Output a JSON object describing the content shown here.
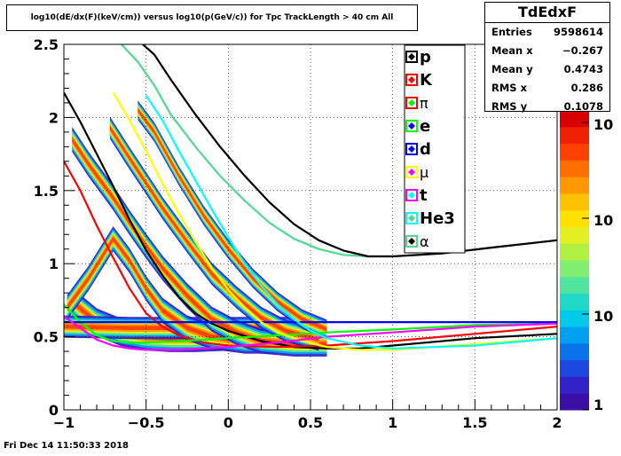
{
  "title": "log10(dE/dx(F)(keV/cm)) versus log10(p(GeV/c)) for Tpc TrackLength > 40 cm All",
  "stats": {
    "name": "TdEdxF",
    "rows": [
      {
        "label": "Entries",
        "value": "9598614"
      },
      {
        "label": "Mean x",
        "value": "−0.267"
      },
      {
        "label": "Mean y",
        "value": "0.4743"
      },
      {
        "label": "RMS x",
        "value": "0.286"
      },
      {
        "label": "RMS y",
        "value": "0.1078"
      }
    ]
  },
  "footer": "Fri Dec 14 11:50:33 2018",
  "palette": [
    "#3b0fa6",
    "#3322c8",
    "#1b47de",
    "#0a72e8",
    "#00a0f0",
    "#00c8e8",
    "#20d8c8",
    "#50e4a0",
    "#80ee70",
    "#b0f040",
    "#e0f020",
    "#ffe000",
    "#ffc000",
    "#ff9800",
    "#ff6e00",
    "#ff4000",
    "#f02000",
    "#d80000"
  ],
  "chart_data": {
    "type": "heatmap",
    "title": "log10(dE/dx(F)(keV/cm)) versus log10(p(GeV/c)) for Tpc TrackLength > 40 cm All",
    "xlim": [
      -1,
      2
    ],
    "ylim": [
      0,
      2.5
    ],
    "x_ticks": [
      "−1",
      "−0.5",
      "0",
      "0.5",
      "1",
      "1.5",
      "2"
    ],
    "y_ticks": [
      "0",
      "0.5",
      "1",
      "1.5",
      "2",
      "2.5"
    ],
    "grid": true,
    "z_scale": "log",
    "colorbar_labels": [
      "1",
      "10",
      "10",
      "10"
    ],
    "legend_position": "top-right",
    "bands": [
      {
        "name": "pi",
        "points": [
          [
            -0.95,
            0.74
          ],
          [
            -0.8,
            0.6
          ],
          [
            -0.65,
            0.53
          ],
          [
            -0.5,
            0.5
          ],
          [
            -0.35,
            0.49
          ],
          [
            -0.2,
            0.49
          ],
          [
            0,
            0.5
          ],
          [
            0.3,
            0.52
          ]
        ],
        "width": 0.05
      },
      {
        "name": "e",
        "points": [
          [
            -1,
            0.57
          ],
          [
            -0.6,
            0.56
          ],
          [
            -0.2,
            0.56
          ],
          [
            0.3,
            0.56
          ],
          [
            0.55,
            0.56
          ]
        ],
        "width": 0.04
      },
      {
        "name": "K",
        "points": [
          [
            -0.98,
            0.7
          ],
          [
            -0.85,
            0.9
          ],
          [
            -0.7,
            1.17
          ],
          [
            -0.6,
            1.02
          ],
          [
            -0.5,
            0.83
          ],
          [
            -0.4,
            0.68
          ],
          [
            -0.25,
            0.56
          ],
          [
            -0.1,
            0.5
          ],
          [
            0.1,
            0.47
          ],
          [
            0.3,
            0.47
          ]
        ],
        "width": 0.045
      },
      {
        "name": "p",
        "points": [
          [
            -0.95,
            1.85
          ],
          [
            -0.85,
            1.68
          ],
          [
            -0.7,
            1.45
          ],
          [
            -0.6,
            1.28
          ],
          [
            -0.5,
            1.12
          ],
          [
            -0.4,
            0.97
          ],
          [
            -0.25,
            0.78
          ],
          [
            -0.1,
            0.62
          ],
          [
            0.05,
            0.53
          ],
          [
            0.2,
            0.47
          ],
          [
            0.4,
            0.45
          ],
          [
            0.6,
            0.45
          ]
        ],
        "width": 0.045
      },
      {
        "name": "d",
        "points": [
          [
            -0.72,
            1.93
          ],
          [
            -0.6,
            1.72
          ],
          [
            -0.5,
            1.55
          ],
          [
            -0.4,
            1.38
          ],
          [
            -0.25,
            1.15
          ],
          [
            -0.1,
            0.93
          ],
          [
            0.05,
            0.77
          ],
          [
            0.2,
            0.63
          ],
          [
            0.35,
            0.54
          ],
          [
            0.55,
            0.48
          ]
        ],
        "width": 0.04
      },
      {
        "name": "t",
        "points": [
          [
            -0.55,
            2.05
          ],
          [
            -0.45,
            1.9
          ],
          [
            -0.3,
            1.6
          ],
          [
            -0.15,
            1.33
          ],
          [
            0,
            1.1
          ],
          [
            0.15,
            0.9
          ],
          [
            0.3,
            0.74
          ],
          [
            0.45,
            0.62
          ],
          [
            0.6,
            0.55
          ]
        ],
        "width": 0.035
      }
    ],
    "curves": [
      {
        "name": "p",
        "color": "#000000",
        "points": [
          [
            -1,
            2.17
          ],
          [
            -0.9,
            1.97
          ],
          [
            -0.8,
            1.75
          ],
          [
            -0.7,
            1.53
          ],
          [
            -0.6,
            1.3
          ],
          [
            -0.5,
            1.09
          ],
          [
            -0.4,
            0.92
          ],
          [
            -0.3,
            0.77
          ],
          [
            -0.2,
            0.66
          ],
          [
            -0.1,
            0.59
          ],
          [
            0,
            0.54
          ],
          [
            0.2,
            0.47
          ],
          [
            0.4,
            0.43
          ],
          [
            0.6,
            0.42
          ],
          [
            0.8,
            0.42
          ],
          [
            1.0,
            0.44
          ],
          [
            1.5,
            0.49
          ],
          [
            2.0,
            0.52
          ]
        ]
      },
      {
        "name": "K",
        "color": "#ff0000",
        "points": [
          [
            -1,
            1.7
          ],
          [
            -0.9,
            1.5
          ],
          [
            -0.8,
            1.26
          ],
          [
            -0.7,
            1.04
          ],
          [
            -0.6,
            0.83
          ],
          [
            -0.5,
            0.66
          ],
          [
            -0.4,
            0.57
          ],
          [
            -0.3,
            0.51
          ],
          [
            -0.15,
            0.46
          ],
          [
            0,
            0.44
          ],
          [
            0.3,
            0.43
          ],
          [
            0.6,
            0.44
          ],
          [
            1.0,
            0.47
          ],
          [
            1.5,
            0.52
          ],
          [
            2.0,
            0.57
          ]
        ]
      },
      {
        "name": "pi",
        "color": "#00ff00",
        "points": [
          [
            -1,
            0.72
          ],
          [
            -0.9,
            0.6
          ],
          [
            -0.8,
            0.51
          ],
          [
            -0.7,
            0.47
          ],
          [
            -0.6,
            0.46
          ],
          [
            -0.5,
            0.46
          ],
          [
            -0.3,
            0.47
          ],
          [
            0,
            0.49
          ],
          [
            0.3,
            0.51
          ],
          [
            0.6,
            0.53
          ],
          [
            1.0,
            0.55
          ],
          [
            1.5,
            0.58
          ],
          [
            2.0,
            0.59
          ]
        ]
      },
      {
        "name": "e",
        "color": "#0000ff",
        "points": [
          [
            -1,
            0.6
          ],
          [
            -0.5,
            0.6
          ],
          [
            0,
            0.6
          ],
          [
            0.5,
            0.6
          ],
          [
            1.0,
            0.6
          ],
          [
            1.5,
            0.6
          ],
          [
            2.0,
            0.6
          ]
        ]
      },
      {
        "name": "d",
        "color": "#ffff00",
        "points": [
          [
            -0.7,
            2.17
          ],
          [
            -0.6,
            1.98
          ],
          [
            -0.5,
            1.77
          ],
          [
            -0.4,
            1.55
          ],
          [
            -0.3,
            1.34
          ],
          [
            -0.2,
            1.15
          ],
          [
            -0.1,
            0.97
          ],
          [
            0,
            0.82
          ],
          [
            0.1,
            0.7
          ],
          [
            0.2,
            0.6
          ],
          [
            0.3,
            0.53
          ],
          [
            0.45,
            0.47
          ],
          [
            0.6,
            0.43
          ],
          [
            0.8,
            0.41
          ],
          [
            1.0,
            0.41
          ],
          [
            1.5,
            0.45
          ],
          [
            2.0,
            0.49
          ]
        ]
      },
      {
        "name": "mu",
        "color": "#ff00ff",
        "points": [
          [
            -1,
            0.64
          ],
          [
            -0.9,
            0.56
          ],
          [
            -0.8,
            0.48
          ],
          [
            -0.7,
            0.44
          ],
          [
            -0.6,
            0.42
          ],
          [
            -0.5,
            0.41
          ],
          [
            -0.3,
            0.41
          ],
          [
            0,
            0.43
          ],
          [
            0.3,
            0.46
          ],
          [
            0.6,
            0.5
          ],
          [
            1.0,
            0.53
          ],
          [
            1.5,
            0.57
          ],
          [
            2.0,
            0.59
          ]
        ]
      },
      {
        "name": "t",
        "color": "#00ffff",
        "points": [
          [
            -0.5,
            2.15
          ],
          [
            -0.4,
            1.98
          ],
          [
            -0.3,
            1.77
          ],
          [
            -0.2,
            1.57
          ],
          [
            -0.1,
            1.37
          ],
          [
            0,
            1.18
          ],
          [
            0.1,
            1.0
          ],
          [
            0.2,
            0.85
          ],
          [
            0.3,
            0.72
          ],
          [
            0.4,
            0.62
          ],
          [
            0.5,
            0.54
          ],
          [
            0.6,
            0.49
          ],
          [
            0.8,
            0.44
          ],
          [
            1.0,
            0.42
          ],
          [
            1.5,
            0.44
          ],
          [
            2.0,
            0.49
          ]
        ]
      },
      {
        "name": "He3",
        "color": "#50d890",
        "points": [
          [
            -0.65,
            2.5
          ],
          [
            -0.55,
            2.38
          ],
          [
            -0.45,
            2.22
          ],
          [
            -0.35,
            2.02
          ],
          [
            -0.2,
            1.8
          ],
          [
            -0.05,
            1.6
          ],
          [
            0.1,
            1.43
          ],
          [
            0.25,
            1.28
          ],
          [
            0.4,
            1.17
          ],
          [
            0.55,
            1.1
          ],
          [
            0.7,
            1.06
          ],
          [
            0.85,
            1.05
          ],
          [
            1.0,
            1.05
          ],
          [
            1.3,
            1.07
          ],
          [
            1.6,
            1.11
          ],
          [
            2.0,
            1.16
          ]
        ]
      },
      {
        "name": "alpha",
        "color": "#000000",
        "points": [
          [
            -0.52,
            2.5
          ],
          [
            -0.45,
            2.43
          ],
          [
            -0.35,
            2.26
          ],
          [
            -0.2,
            2.02
          ],
          [
            -0.05,
            1.8
          ],
          [
            0.1,
            1.6
          ],
          [
            0.25,
            1.42
          ],
          [
            0.4,
            1.27
          ],
          [
            0.55,
            1.16
          ],
          [
            0.7,
            1.09
          ],
          [
            0.85,
            1.05
          ],
          [
            1.0,
            1.05
          ],
          [
            1.3,
            1.07
          ],
          [
            1.6,
            1.11
          ],
          [
            2.0,
            1.16
          ]
        ]
      }
    ],
    "legend": [
      {
        "label": "p",
        "color": "#000000",
        "greek": false
      },
      {
        "label": "K",
        "color": "#ff0000",
        "greek": false
      },
      {
        "label": "π",
        "color": "#ff0000",
        "marker": "#00ff00",
        "greek": true
      },
      {
        "label": "e",
        "color": "#00ff00",
        "marker": "#0000ff",
        "greek": false
      },
      {
        "label": "d",
        "color": "#0000ff",
        "greek": false
      },
      {
        "label": "μ",
        "color": "#ffff00",
        "marker": "#ff00ff",
        "greek": true
      },
      {
        "label": "t",
        "color": "#ff00ff",
        "marker": "#00ffff",
        "greek": false
      },
      {
        "label": "He3",
        "color": "#00ffff",
        "marker": "#50d890",
        "greek": false
      },
      {
        "label": "α",
        "color": "#50d890",
        "marker": "#000000",
        "greek": true
      }
    ]
  }
}
